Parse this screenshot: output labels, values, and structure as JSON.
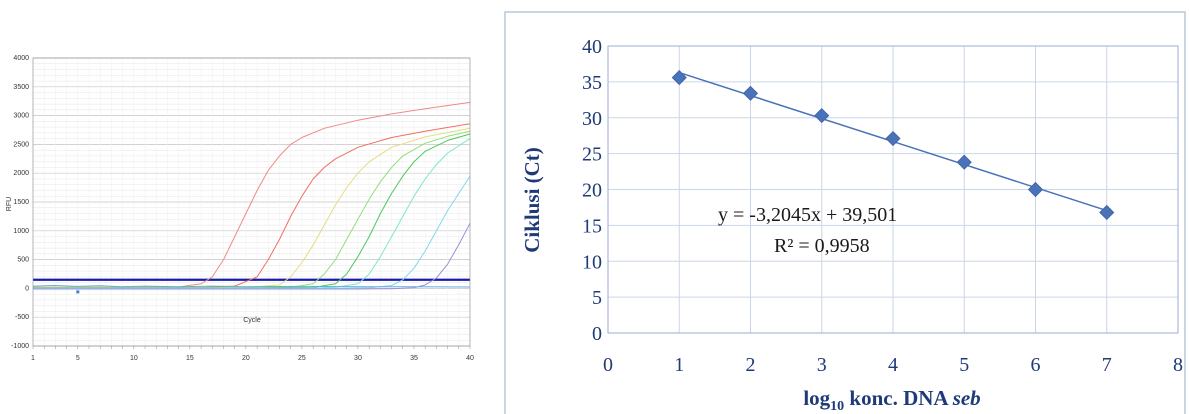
{
  "chart_data": [
    {
      "type": "line",
      "ylabel": "RFU",
      "xlabel": "Cycle",
      "ylim": [
        -1000,
        4000
      ],
      "xlim": [
        1,
        40
      ],
      "y_ticks": [
        "4000",
        "3500",
        "3000",
        "2500",
        "2000",
        "1500",
        "1000",
        "500",
        "0",
        "-500",
        "-1000"
      ],
      "x_ticks": [
        "1",
        "5",
        "10",
        "15",
        "20",
        "25",
        "30",
        "35",
        "40"
      ],
      "grid": true,
      "threshold": 150,
      "series": [
        {
          "color": "#f08a86",
          "values": [
            [
              1,
              20
            ],
            [
              5,
              20
            ],
            [
              10,
              20
            ],
            [
              14,
              25
            ],
            [
              16,
              80
            ],
            [
              17,
              200
            ],
            [
              18,
              500
            ],
            [
              19,
              900
            ],
            [
              20,
              1300
            ],
            [
              21,
              1700
            ],
            [
              22,
              2050
            ],
            [
              23,
              2300
            ],
            [
              24,
              2500
            ],
            [
              25,
              2620
            ],
            [
              27,
              2780
            ],
            [
              30,
              2920
            ],
            [
              33,
              3030
            ],
            [
              36,
              3120
            ],
            [
              40,
              3230
            ]
          ]
        },
        {
          "color": "#ee7060",
          "values": [
            [
              1,
              10
            ],
            [
              10,
              10
            ],
            [
              16,
              15
            ],
            [
              19,
              40
            ],
            [
              21,
              200
            ],
            [
              22,
              500
            ],
            [
              23,
              850
            ],
            [
              24,
              1250
            ],
            [
              25,
              1600
            ],
            [
              26,
              1900
            ],
            [
              27,
              2100
            ],
            [
              28,
              2250
            ],
            [
              30,
              2450
            ],
            [
              33,
              2620
            ],
            [
              36,
              2730
            ],
            [
              40,
              2860
            ]
          ]
        },
        {
          "color": "#e6dc80",
          "values": [
            [
              1,
              10
            ],
            [
              15,
              10
            ],
            [
              20,
              15
            ],
            [
              23,
              60
            ],
            [
              24,
              200
            ],
            [
              25,
              450
            ],
            [
              26,
              750
            ],
            [
              27,
              1100
            ],
            [
              28,
              1450
            ],
            [
              29,
              1750
            ],
            [
              30,
              2000
            ],
            [
              31,
              2200
            ],
            [
              33,
              2450
            ],
            [
              36,
              2630
            ],
            [
              40,
              2780
            ]
          ]
        },
        {
          "color": "#8fe07a",
          "values": [
            [
              1,
              10
            ],
            [
              20,
              10
            ],
            [
              24,
              20
            ],
            [
              26,
              80
            ],
            [
              27,
              250
            ],
            [
              28,
              500
            ],
            [
              29,
              850
            ],
            [
              30,
              1200
            ],
            [
              31,
              1550
            ],
            [
              32,
              1850
            ],
            [
              33,
              2100
            ],
            [
              34,
              2300
            ],
            [
              36,
              2520
            ],
            [
              38,
              2640
            ],
            [
              40,
              2730
            ]
          ]
        },
        {
          "color": "#4ac95c",
          "values": [
            [
              1,
              5
            ],
            [
              20,
              5
            ],
            [
              26,
              15
            ],
            [
              28,
              80
            ],
            [
              29,
              250
            ],
            [
              30,
              550
            ],
            [
              31,
              900
            ],
            [
              32,
              1300
            ],
            [
              33,
              1650
            ],
            [
              34,
              1950
            ],
            [
              35,
              2200
            ],
            [
              36,
              2380
            ],
            [
              38,
              2570
            ],
            [
              40,
              2680
            ]
          ]
        },
        {
          "color": "#7fe6cf",
          "values": [
            [
              1,
              0
            ],
            [
              25,
              0
            ],
            [
              28,
              20
            ],
            [
              30,
              80
            ],
            [
              31,
              250
            ],
            [
              32,
              550
            ],
            [
              33,
              900
            ],
            [
              34,
              1250
            ],
            [
              35,
              1600
            ],
            [
              36,
              1900
            ],
            [
              37,
              2150
            ],
            [
              38,
              2350
            ],
            [
              40,
              2600
            ]
          ]
        },
        {
          "color": "#80d8ee",
          "values": [
            [
              1,
              0
            ],
            [
              28,
              0
            ],
            [
              31,
              10
            ],
            [
              33,
              50
            ],
            [
              34,
              150
            ],
            [
              35,
              350
            ],
            [
              36,
              650
            ],
            [
              37,
              1000
            ],
            [
              38,
              1350
            ],
            [
              39,
              1650
            ],
            [
              40,
              1950
            ]
          ]
        },
        {
          "color": "#9a90d8",
          "values": [
            [
              1,
              -10
            ],
            [
              30,
              -10
            ],
            [
              33,
              -5
            ],
            [
              35,
              10
            ],
            [
              36,
              60
            ],
            [
              37,
              180
            ],
            [
              38,
              420
            ],
            [
              39,
              760
            ],
            [
              40,
              1130
            ]
          ]
        },
        {
          "color": "#6aa8e0",
          "values": [
            [
              1,
              40
            ],
            [
              3,
              50
            ],
            [
              5,
              35
            ],
            [
              7,
              45
            ],
            [
              9,
              30
            ],
            [
              11,
              40
            ],
            [
              14,
              30
            ],
            [
              17,
              40
            ],
            [
              20,
              30
            ],
            [
              25,
              35
            ],
            [
              30,
              30
            ],
            [
              35,
              30
            ],
            [
              40,
              25
            ]
          ]
        }
      ]
    },
    {
      "type": "scatter",
      "xlabel_main": "log",
      "xlabel_sub": "10",
      "xlabel_rest": " konc. DNA ",
      "xlabel_italic": "seb",
      "ylabel": "Ciklusi (Ct)",
      "xlim": [
        0,
        8
      ],
      "ylim": [
        0,
        40
      ],
      "x_ticks": [
        "0",
        "1",
        "2",
        "3",
        "4",
        "5",
        "6",
        "7",
        "8"
      ],
      "y_ticks": [
        "40",
        "35",
        "30",
        "25",
        "20",
        "15",
        "10",
        "5",
        "0"
      ],
      "grid": true,
      "marker_color": "#4a72b8",
      "line_color": "#4a72b8",
      "points": [
        [
          1,
          35.6
        ],
        [
          2,
          33.4
        ],
        [
          3,
          30.3
        ],
        [
          4,
          27.1
        ],
        [
          5,
          23.8
        ],
        [
          6,
          20.0
        ],
        [
          7,
          16.8
        ]
      ],
      "trendline": {
        "slope": -3.2045,
        "intercept": 39.501
      },
      "equation": "y = -3,2045x + 39,501",
      "r_squared": "R² = 0,9958"
    }
  ]
}
